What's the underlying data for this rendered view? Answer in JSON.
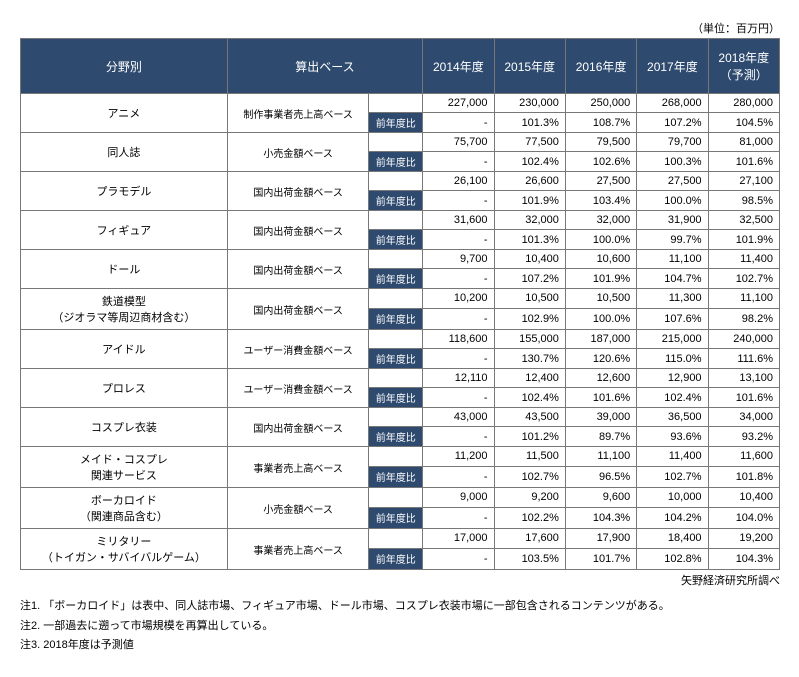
{
  "unit_label": "（単位：百万円）",
  "headers": {
    "category": "分野別",
    "basis": "算出ベース",
    "years": [
      "2014年度",
      "2015年度",
      "2016年度",
      "2017年度",
      "2018年度\n（予測）"
    ]
  },
  "yoy_label": "前年度比",
  "rows": [
    {
      "category": "アニメ",
      "basis": "制作事業者売上高ベース",
      "values": [
        "227,000",
        "230,000",
        "250,000",
        "268,000",
        "280,000"
      ],
      "yoy": [
        "-",
        "101.3%",
        "108.7%",
        "107.2%",
        "104.5%"
      ]
    },
    {
      "category": "同人誌",
      "basis": "小売金額ベース",
      "values": [
        "75,700",
        "77,500",
        "79,500",
        "79,700",
        "81,000"
      ],
      "yoy": [
        "-",
        "102.4%",
        "102.6%",
        "100.3%",
        "101.6%"
      ]
    },
    {
      "category": "プラモデル",
      "basis": "国内出荷金額ベース",
      "values": [
        "26,100",
        "26,600",
        "27,500",
        "27,500",
        "27,100"
      ],
      "yoy": [
        "-",
        "101.9%",
        "103.4%",
        "100.0%",
        "98.5%"
      ]
    },
    {
      "category": "フィギュア",
      "basis": "国内出荷金額ベース",
      "values": [
        "31,600",
        "32,000",
        "32,000",
        "31,900",
        "32,500"
      ],
      "yoy": [
        "-",
        "101.3%",
        "100.0%",
        "99.7%",
        "101.9%"
      ]
    },
    {
      "category": "ドール",
      "basis": "国内出荷金額ベース",
      "values": [
        "9,700",
        "10,400",
        "10,600",
        "11,100",
        "11,400"
      ],
      "yoy": [
        "-",
        "107.2%",
        "101.9%",
        "104.7%",
        "102.7%"
      ]
    },
    {
      "category": "鉄道模型\n（ジオラマ等周辺商材含む）",
      "basis": "国内出荷金額ベース",
      "values": [
        "10,200",
        "10,500",
        "10,500",
        "11,300",
        "11,100"
      ],
      "yoy": [
        "-",
        "102.9%",
        "100.0%",
        "107.6%",
        "98.2%"
      ]
    },
    {
      "category": "アイドル",
      "basis": "ユーザー消費金額ベース",
      "values": [
        "118,600",
        "155,000",
        "187,000",
        "215,000",
        "240,000"
      ],
      "yoy": [
        "-",
        "130.7%",
        "120.6%",
        "115.0%",
        "111.6%"
      ]
    },
    {
      "category": "プロレス",
      "basis": "ユーザー消費金額ベース",
      "values": [
        "12,110",
        "12,400",
        "12,600",
        "12,900",
        "13,100"
      ],
      "yoy": [
        "-",
        "102.4%",
        "101.6%",
        "102.4%",
        "101.6%"
      ]
    },
    {
      "category": "コスプレ衣装",
      "basis": "国内出荷金額ベース",
      "values": [
        "43,000",
        "43,500",
        "39,000",
        "36,500",
        "34,000"
      ],
      "yoy": [
        "-",
        "101.2%",
        "89.7%",
        "93.6%",
        "93.2%"
      ]
    },
    {
      "category": "メイド・コスプレ\n関連サービス",
      "basis": "事業者売上高ベース",
      "values": [
        "11,200",
        "11,500",
        "11,100",
        "11,400",
        "11,600"
      ],
      "yoy": [
        "-",
        "102.7%",
        "96.5%",
        "102.7%",
        "101.8%"
      ]
    },
    {
      "category": "ボーカロイド\n（関連商品含む）",
      "basis": "小売金額ベース",
      "values": [
        "9,000",
        "9,200",
        "9,600",
        "10,000",
        "10,400"
      ],
      "yoy": [
        "-",
        "102.2%",
        "104.3%",
        "104.2%",
        "104.0%"
      ]
    },
    {
      "category": "ミリタリー\n（トイガン・サバイバルゲーム）",
      "basis": "事業者売上高ベース",
      "values": [
        "17,000",
        "17,600",
        "17,900",
        "18,400",
        "19,200"
      ],
      "yoy": [
        "-",
        "103.5%",
        "101.7%",
        "102.8%",
        "104.3%"
      ]
    }
  ],
  "source": "矢野経済研究所調べ",
  "notes": [
    "注1. 「ボーカロイド」は表中、同人誌市場、フィギュア市場、ドール市場、コスプレ衣装市場に一部包含されるコンテンツがある。",
    "注2. 一部過去に遡って市場規模を再算出している。",
    "注3. 2018年度は予測値"
  ],
  "colors": {
    "header_bg": "#2e4a6f",
    "header_fg": "#ffffff",
    "border": "#777777"
  }
}
